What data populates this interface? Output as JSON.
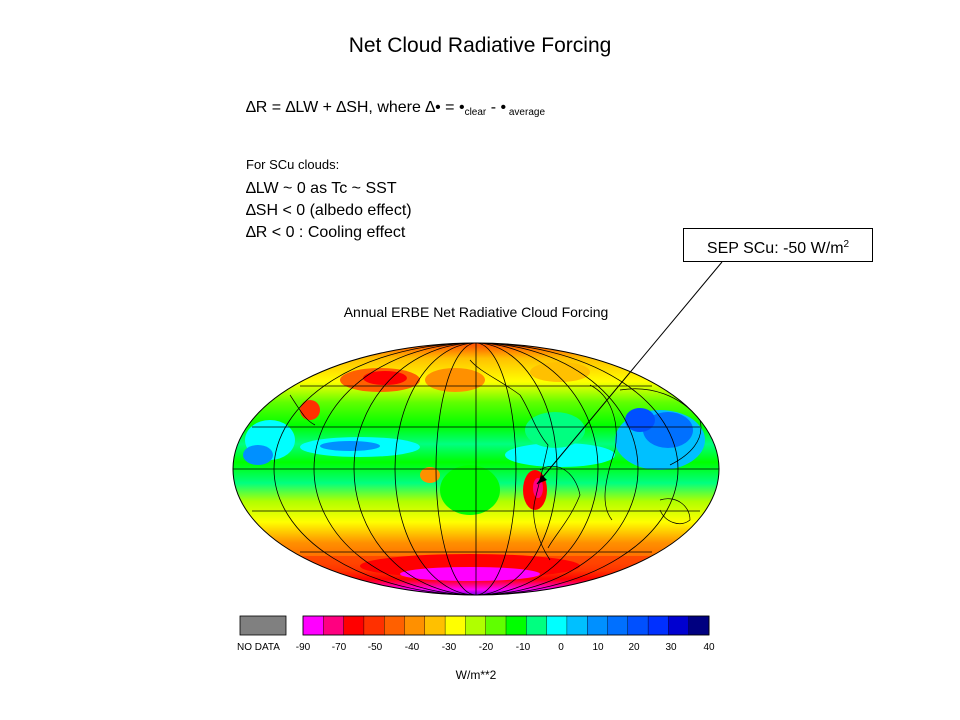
{
  "slide": {
    "title": "Net Cloud Radiative Forcing",
    "formula": {
      "lead": "∆R = ∆LW + ∆SH, where ∆• = •",
      "sub1": "clear",
      "mid": " - •",
      "sub2": " average"
    },
    "scu": {
      "heading": "For SCu clouds:",
      "lines": [
        "∆LW ~ 0 as Tc ~ SST",
        "∆SH < 0 (albedo effect)",
        "∆R   <  0 : Cooling effect"
      ]
    },
    "callout": {
      "text": "SEP SCu: -50 W/m",
      "sup": "2"
    }
  },
  "map": {
    "title": "Annual ERBE Net Radiative Cloud Forcing",
    "projection": "Hammer/Mollweide (elliptical)",
    "highlight_region": "Southeast Pacific stratocumulus (off Peru/Chile)"
  },
  "legend": {
    "nodata_label": "NO DATA",
    "nodata_color": "#808080",
    "colors": [
      "#ff00ff",
      "#ff0080",
      "#ff0000",
      "#ff3000",
      "#ff6000",
      "#ff9000",
      "#ffc000",
      "#ffff00",
      "#b0ff00",
      "#60ff00",
      "#00ff00",
      "#00ff80",
      "#00ffff",
      "#00c0ff",
      "#0090ff",
      "#0070ff",
      "#0050ff",
      "#0030ff",
      "#0000d0",
      "#000080"
    ],
    "tick_labels": [
      "-90",
      "-70",
      "-50",
      "-40",
      "-30",
      "-20",
      "-10",
      "0",
      "10",
      "20",
      "30",
      "40"
    ],
    "units": "W/m**2"
  }
}
